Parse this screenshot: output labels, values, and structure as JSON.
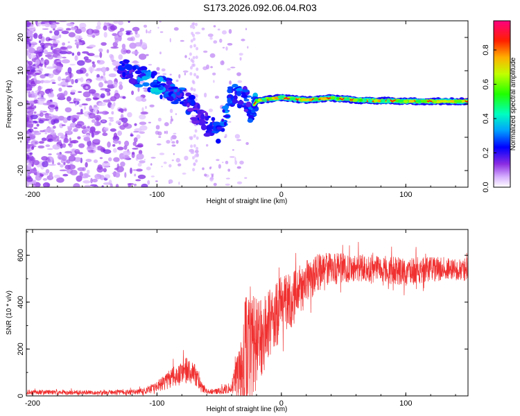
{
  "title": "S173.2026.092.06.04.R03",
  "chart_data": [
    {
      "type": "heatmap",
      "name": "spectrogram",
      "xlabel": "Height of straight line (km)",
      "ylabel": "Frequency (Hz)",
      "xlim": [
        -205,
        150
      ],
      "ylim": [
        -25,
        25
      ],
      "xticks": [
        -200,
        -100,
        0,
        100
      ],
      "yticks": [
        -20,
        -10,
        0,
        10,
        20
      ],
      "colorbar": {
        "label": "Normalized spectral amplitude",
        "range": [
          0.0,
          0.97
        ],
        "ticks": [
          0.0,
          0.2,
          0.4,
          0.6,
          0.8
        ],
        "colors": [
          "#ffffff",
          "#c080ff",
          "#6a00ff",
          "#0000ff",
          "#00c0ff",
          "#00ff80",
          "#40ff00",
          "#ffff00",
          "#ff8000",
          "#ff0000",
          "#ff0080"
        ]
      },
      "ridge": {
        "x": [
          -130,
          -120,
          -110,
          -100,
          -90,
          -80,
          -70,
          -60,
          -50,
          -40,
          -30,
          -25,
          -20,
          -10,
          0,
          10,
          20,
          30,
          40,
          50,
          60,
          70,
          80,
          90,
          100,
          110,
          120,
          130,
          140,
          150
        ],
        "y": [
          11,
          9,
          8,
          6,
          4,
          2,
          -2,
          -6,
          -9,
          3,
          2,
          -2,
          1,
          1.5,
          2,
          1.5,
          1.2,
          1.5,
          1.8,
          1.5,
          1.2,
          1.0,
          1.0,
          1.0,
          0.8,
          0.8,
          0.8,
          0.8,
          0.8,
          0.8
        ],
        "amplitude": [
          0.25,
          0.3,
          0.35,
          0.4,
          0.3,
          0.3,
          0.25,
          0.25,
          0.3,
          0.35,
          0.3,
          0.3,
          0.45,
          0.6,
          0.7,
          0.75,
          0.8,
          0.85,
          0.9,
          0.85,
          0.8,
          0.8,
          0.85,
          0.9,
          0.9,
          0.9,
          0.9,
          0.9,
          0.85,
          0.85
        ]
      }
    },
    {
      "type": "line",
      "name": "snr",
      "xlabel": "Height of straight line (km)",
      "ylabel": "SNR (10 * v/v)",
      "xlim": [
        -205,
        150
      ],
      "ylim": [
        0,
        710
      ],
      "xticks": [
        -200,
        -100,
        0,
        100
      ],
      "yticks": [
        0,
        200,
        400,
        600
      ],
      "color": "#f03030",
      "envelope": {
        "x": [
          -205,
          -160,
          -130,
          -110,
          -100,
          -90,
          -80,
          -75,
          -70,
          -65,
          -60,
          -50,
          -40,
          -35,
          -30,
          -25,
          -20,
          -10,
          0,
          10,
          20,
          30,
          40,
          60,
          80,
          100,
          120,
          140,
          150
        ],
        "mean": [
          15,
          15,
          15,
          20,
          40,
          70,
          100,
          110,
          100,
          40,
          20,
          20,
          40,
          80,
          150,
          200,
          240,
          300,
          380,
          420,
          480,
          530,
          540,
          550,
          540,
          530,
          540,
          540,
          540
        ],
        "amplitude": [
          10,
          10,
          10,
          15,
          25,
          40,
          55,
          70,
          50,
          25,
          10,
          15,
          30,
          100,
          250,
          300,
          200,
          150,
          130,
          120,
          100,
          80,
          70,
          60,
          60,
          60,
          55,
          50,
          50
        ]
      }
    }
  ]
}
